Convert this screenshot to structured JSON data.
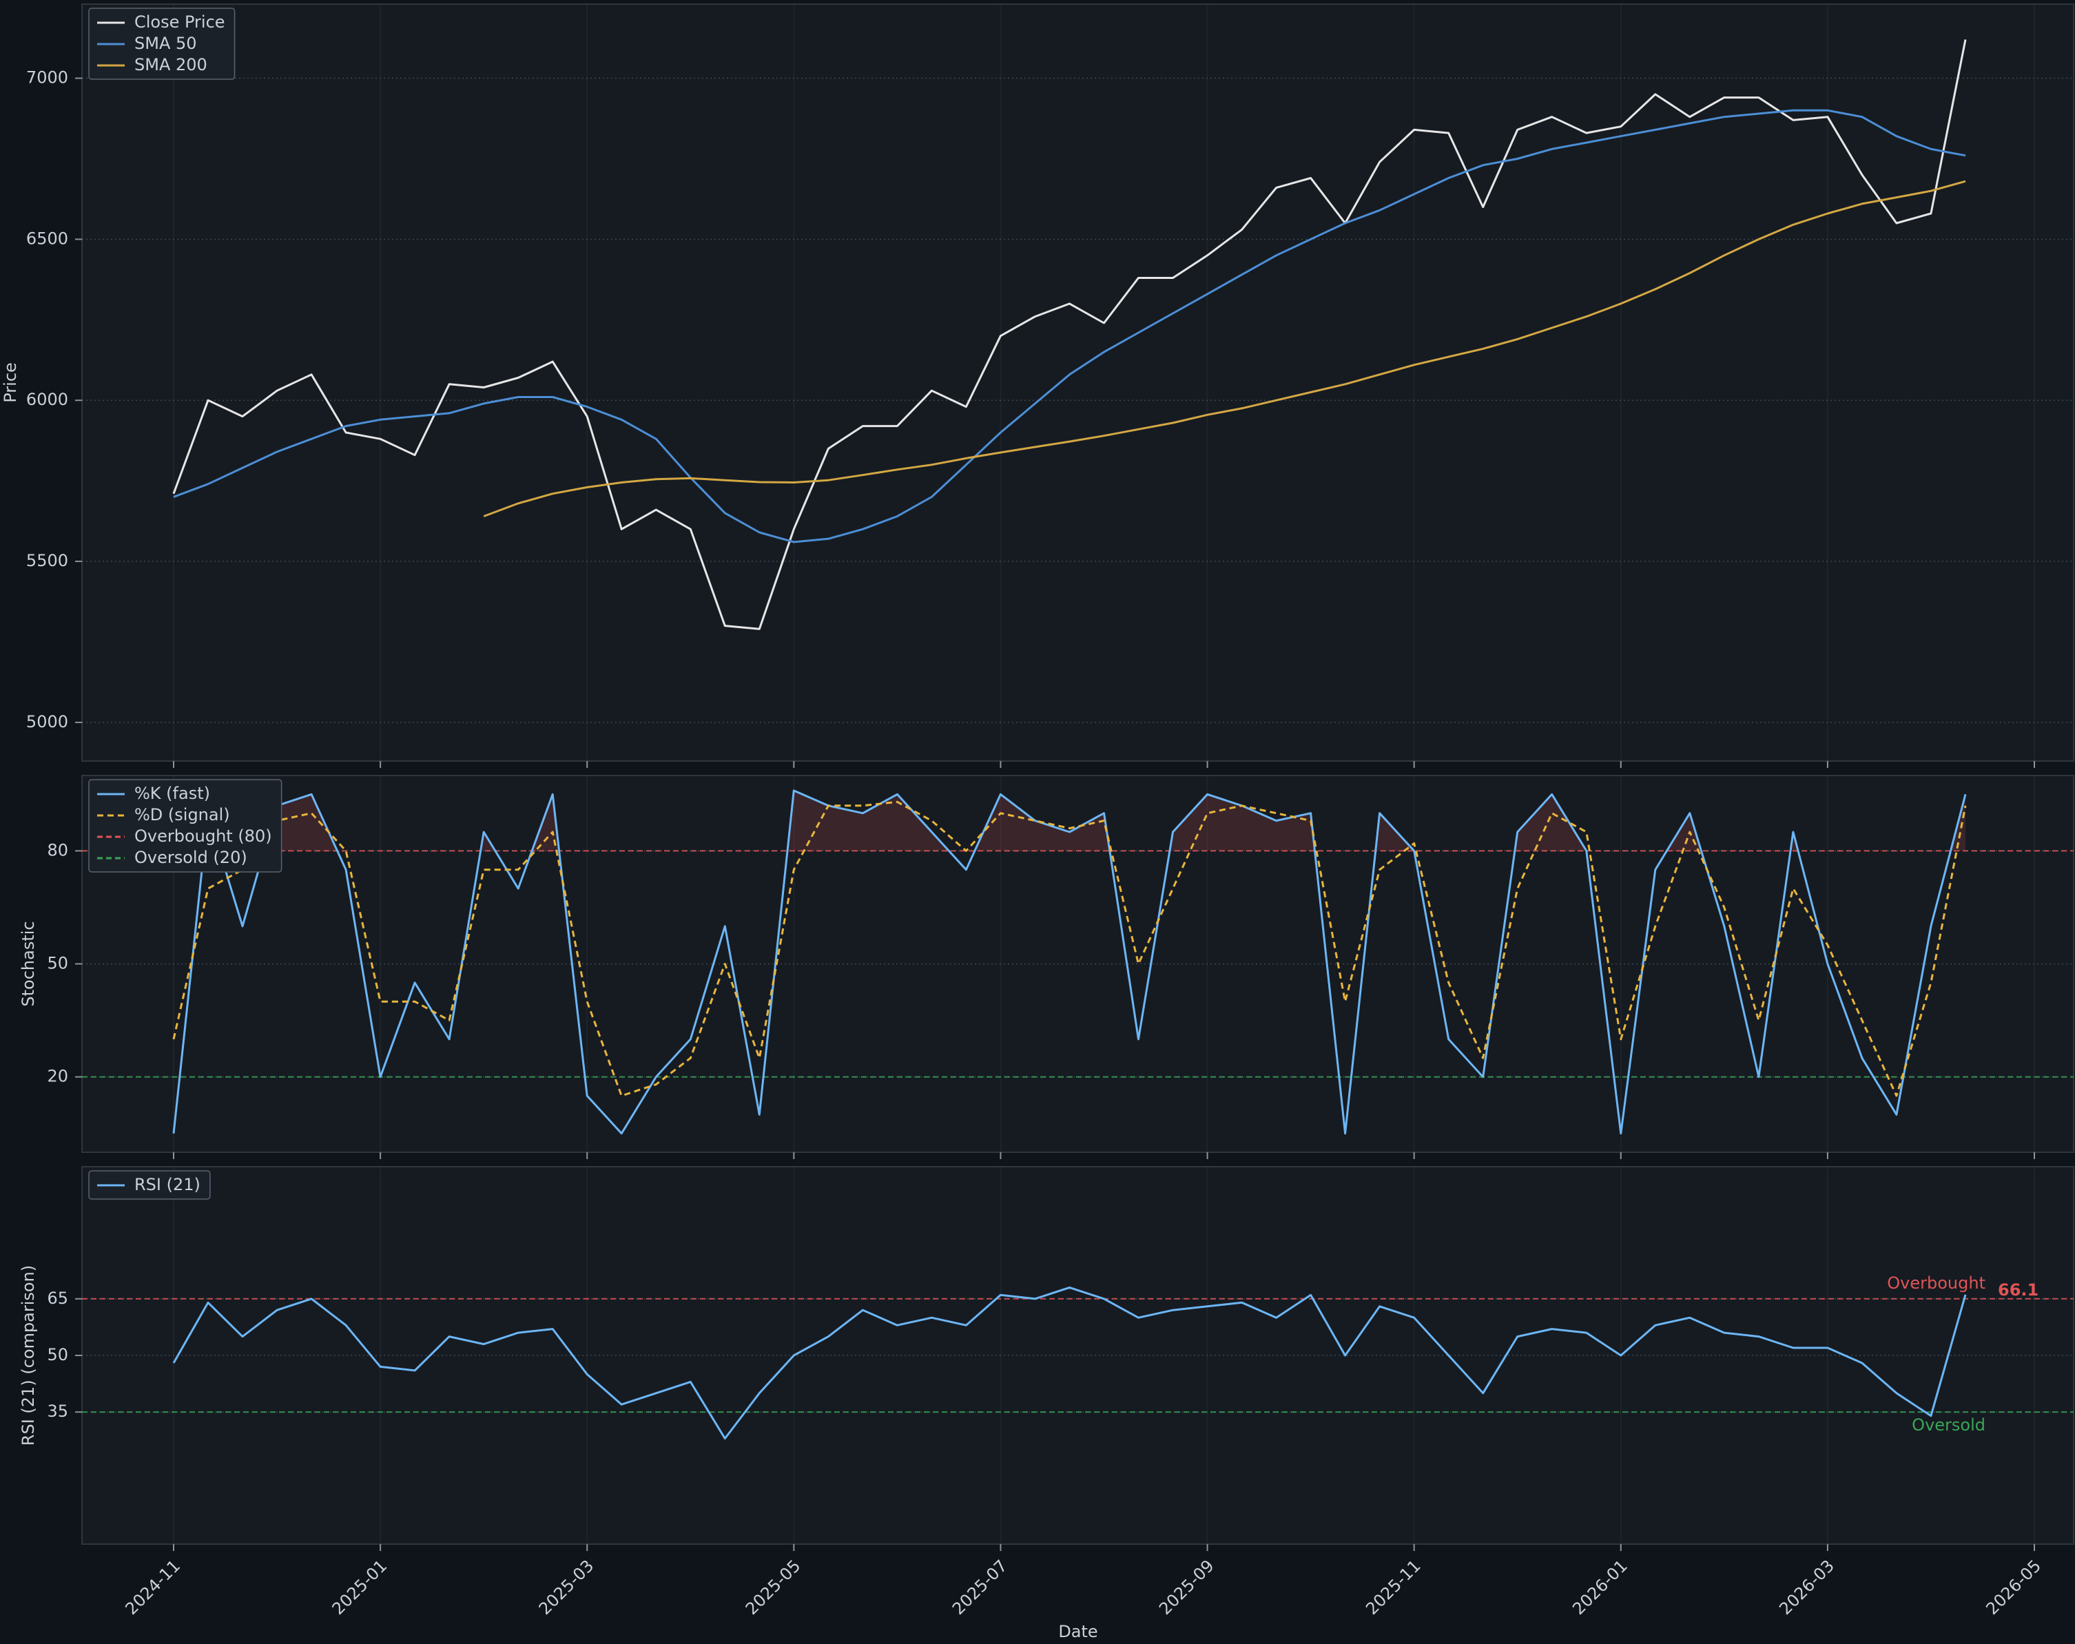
{
  "chart_data": [
    {
      "type": "line",
      "ylabel": "Price",
      "ylim": [
        4880,
        7230
      ],
      "yticks": [
        5000,
        5500,
        6000,
        6500,
        7000
      ],
      "grid": true,
      "series": [
        {
          "name": "Close Price",
          "color": "#e6e6e6",
          "values": [
            5710,
            6000,
            5950,
            6030,
            6080,
            5900,
            5880,
            5830,
            6050,
            6040,
            6070,
            6120,
            5950,
            5600,
            5660,
            5600,
            5300,
            5290,
            5600,
            5850,
            5920,
            5920,
            6030,
            5980,
            6200,
            6260,
            6300,
            6240,
            6380,
            6380,
            6450,
            6530,
            6660,
            6690,
            6550,
            6740,
            6840,
            6830,
            6600,
            6840,
            6880,
            6830,
            6850,
            6950,
            6880,
            6940,
            6940,
            6870,
            6880,
            6700,
            6550,
            6580,
            7120,
            null,
            null
          ]
        },
        {
          "name": "SMA 50",
          "color": "#4c8fd6",
          "values": [
            5700,
            5740,
            5790,
            5840,
            5880,
            5920,
            5940,
            5950,
            5960,
            5990,
            6010,
            6010,
            5980,
            5940,
            5880,
            5760,
            5650,
            5590,
            5560,
            5570,
            5600,
            5640,
            5700,
            5800,
            5900,
            5990,
            6080,
            6150,
            6210,
            6270,
            6330,
            6390,
            6450,
            6500,
            6550,
            6590,
            6640,
            6690,
            6730,
            6750,
            6780,
            6800,
            6820,
            6840,
            6860,
            6880,
            6890,
            6900,
            6900,
            6880,
            6820,
            6780,
            6760,
            null,
            null
          ]
        },
        {
          "name": "SMA 200",
          "color": "#d4a843",
          "values": [
            null,
            null,
            null,
            null,
            null,
            null,
            null,
            null,
            null,
            5640,
            5680,
            5710,
            5730,
            5745,
            5755,
            5758,
            5752,
            5746,
            5745,
            5752,
            5768,
            5785,
            5800,
            5820,
            5838,
            5855,
            5872,
            5890,
            5910,
            5930,
            5955,
            5975,
            6000,
            6025,
            6050,
            6080,
            6110,
            6135,
            6160,
            6190,
            6225,
            6260,
            6300,
            6345,
            6395,
            6450,
            6500,
            6545,
            6580,
            6610,
            6630,
            6650,
            6680,
            null,
            null
          ]
        }
      ]
    },
    {
      "type": "line",
      "ylabel": "Stochastic",
      "ylim": [
        0,
        100
      ],
      "yticks": [
        20,
        50,
        80
      ],
      "grid": true,
      "overbought_fill": true,
      "series": [
        {
          "name": "%K (fast)",
          "color": "#6cb6f5",
          "values": [
            5,
            90,
            60,
            92,
            95,
            75,
            20,
            45,
            30,
            85,
            70,
            95,
            15,
            5,
            20,
            30,
            60,
            10,
            96,
            92,
            90,
            95,
            85,
            75,
            95,
            88,
            85,
            90,
            30,
            85,
            95,
            92,
            88,
            90,
            5,
            90,
            80,
            30,
            20,
            85,
            95,
            80,
            5,
            75,
            90,
            60,
            20,
            85,
            50,
            25,
            10,
            60,
            95,
            null,
            null
          ]
        },
        {
          "name": "%D (signal)",
          "color": "#e8b53c",
          "dash": true,
          "values": [
            30,
            70,
            75,
            88,
            90,
            80,
            40,
            40,
            35,
            75,
            75,
            85,
            40,
            15,
            18,
            25,
            50,
            25,
            75,
            92,
            92,
            93,
            88,
            80,
            90,
            88,
            86,
            88,
            50,
            70,
            90,
            92,
            90,
            88,
            40,
            75,
            82,
            45,
            25,
            70,
            90,
            85,
            30,
            60,
            85,
            65,
            35,
            70,
            55,
            35,
            15,
            45,
            92,
            null,
            null
          ]
        }
      ],
      "hlines": [
        {
          "name": "Overbought (80)",
          "value": 80,
          "color": "#e05555"
        },
        {
          "name": "Oversold (20)",
          "value": 20,
          "color": "#3aa655"
        }
      ]
    },
    {
      "type": "line",
      "ylabel": "RSI (21) (comparison)",
      "xlabel": "Date",
      "ylim": [
        0,
        100
      ],
      "yticks": [
        35,
        50,
        65
      ],
      "grid": true,
      "last_value_label": true,
      "categories": [
        "2024-11",
        null,
        null,
        null,
        null,
        null,
        "2025-01",
        null,
        null,
        null,
        null,
        null,
        "2025-03",
        null,
        null,
        null,
        null,
        null,
        "2025-05",
        null,
        null,
        null,
        null,
        null,
        "2025-07",
        null,
        null,
        null,
        null,
        null,
        "2025-09",
        null,
        null,
        null,
        null,
        null,
        "2025-11",
        null,
        null,
        null,
        null,
        null,
        "2026-01",
        null,
        null,
        null,
        null,
        null,
        "2026-03",
        null,
        null,
        null,
        null,
        null,
        "2026-05"
      ],
      "series": [
        {
          "name": "RSI (21)",
          "color": "#6cb6f5",
          "values": [
            48,
            64,
            55,
            62,
            65,
            58,
            47,
            46,
            55,
            53,
            56,
            57,
            45,
            37,
            40,
            43,
            28,
            40,
            50,
            55,
            62,
            58,
            60,
            58,
            66,
            65,
            68,
            65,
            60,
            62,
            63,
            64,
            60,
            66,
            50,
            63,
            60,
            50,
            40,
            55,
            57,
            56,
            50,
            58,
            60,
            56,
            55,
            52,
            52,
            48,
            40,
            34,
            66.1,
            null,
            null
          ]
        }
      ],
      "hlines": [
        {
          "label": "Overbought",
          "value": 65,
          "color": "#e05555"
        },
        {
          "label": "Oversold",
          "value": 35,
          "color": "#3aa655"
        }
      ]
    }
  ]
}
